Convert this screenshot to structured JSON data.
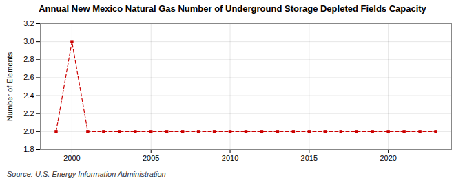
{
  "chart_data": {
    "type": "line",
    "title": "Annual New Mexico Natural Gas Number of Underground Storage Depleted Fields Capacity",
    "ylabel": "Number of Elements",
    "annotations": [
      "Source: U.S. Energy Information Administration"
    ],
    "x": [
      1999,
      2000,
      2001,
      2002,
      2003,
      2004,
      2005,
      2006,
      2007,
      2008,
      2009,
      2010,
      2011,
      2012,
      2013,
      2014,
      2015,
      2016,
      2017,
      2018,
      2019,
      2020,
      2021,
      2022,
      2023
    ],
    "values": [
      2,
      3,
      2,
      2,
      2,
      2,
      2,
      2,
      2,
      2,
      2,
      2,
      2,
      2,
      2,
      2,
      2,
      2,
      2,
      2,
      2,
      2,
      2,
      2,
      2
    ],
    "color": "#cc0000",
    "marker": "square",
    "line_style": "dashed",
    "xlim": [
      1998,
      2024
    ],
    "xticks": [
      2000,
      2005,
      2010,
      2015,
      2020
    ],
    "ylim": [
      1.8,
      3.2
    ],
    "yticks": [
      1.8,
      {
        "value": 2.0,
        "label": "2.0"
      },
      2.2,
      2.4,
      2.6,
      2.8,
      {
        "value": 3.0,
        "label": "3.0"
      },
      3.2
    ],
    "grid": true
  }
}
